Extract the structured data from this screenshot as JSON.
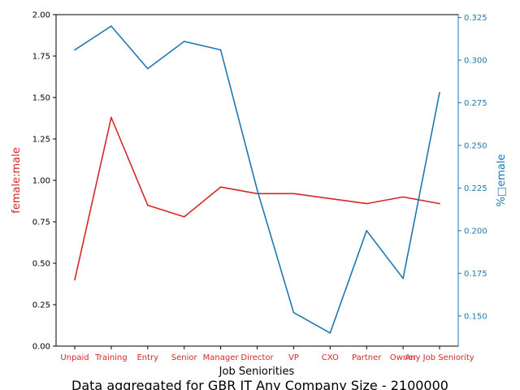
{
  "chart_data": {
    "type": "line",
    "title": "Data aggregated for GBR IT Any Company Size - 2100000",
    "xlabel": "Job Seniorities",
    "categories": [
      "Unpaid",
      "Training",
      "Entry",
      "Senior",
      "Manager",
      "Director",
      "VP",
      "CXO",
      "Partner",
      "Owner",
      "Any Job Seniority"
    ],
    "left_axis": {
      "label": "female:male",
      "color": "#d62728",
      "ylim": [
        0,
        2.0
      ],
      "ticks": [
        "0.00",
        "0.25",
        "0.50",
        "0.75",
        "1.00",
        "1.25",
        "1.50",
        "1.75",
        "2.00"
      ]
    },
    "right_axis": {
      "label": "%female",
      "label_display": "%□emale",
      "color": "#1f77b4",
      "ylim": [
        0.1323,
        0.3267
      ],
      "ticks": [
        "0.150",
        "0.175",
        "0.200",
        "0.225",
        "0.250",
        "0.275",
        "0.300",
        "0.325"
      ]
    },
    "series": [
      {
        "axis": "left",
        "color": "#d62728",
        "values": [
          0.4,
          1.38,
          0.85,
          0.78,
          0.96,
          0.92,
          0.92,
          0.89,
          0.86,
          0.9,
          0.86
        ]
      },
      {
        "axis": "right",
        "color": "#1f77b4",
        "values": [
          0.306,
          0.32,
          0.295,
          0.311,
          0.306,
          0.224,
          0.152,
          0.14,
          0.2,
          0.172,
          0.281
        ]
      }
    ],
    "grid": false,
    "legend": "none"
  }
}
